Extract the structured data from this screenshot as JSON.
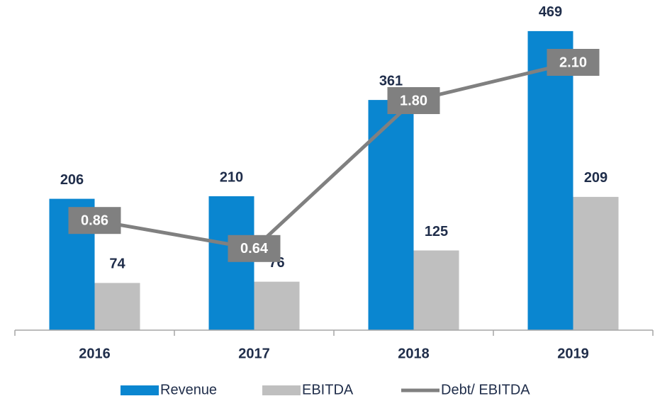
{
  "chart_data": {
    "type": "bar",
    "categories": [
      "2016",
      "2017",
      "2018",
      "2019"
    ],
    "series": [
      {
        "name": "Revenue",
        "type": "bar",
        "color": "#0a86d0",
        "values": [
          206,
          210,
          361,
          469
        ]
      },
      {
        "name": "EBITDA",
        "type": "bar",
        "color": "#bfbfbf",
        "values": [
          74,
          76,
          125,
          209
        ]
      },
      {
        "name": "Debt/ EBITDA",
        "type": "line",
        "axis": "y2",
        "color": "#808080",
        "values": [
          0.86,
          0.64,
          1.8,
          2.1
        ],
        "value_labels": [
          "0.86",
          "0.64",
          "1.80",
          "2.10"
        ]
      }
    ],
    "ylim": [
      0,
      500
    ],
    "y2lim": [
      0,
      2.5
    ],
    "legend": "bottom"
  }
}
